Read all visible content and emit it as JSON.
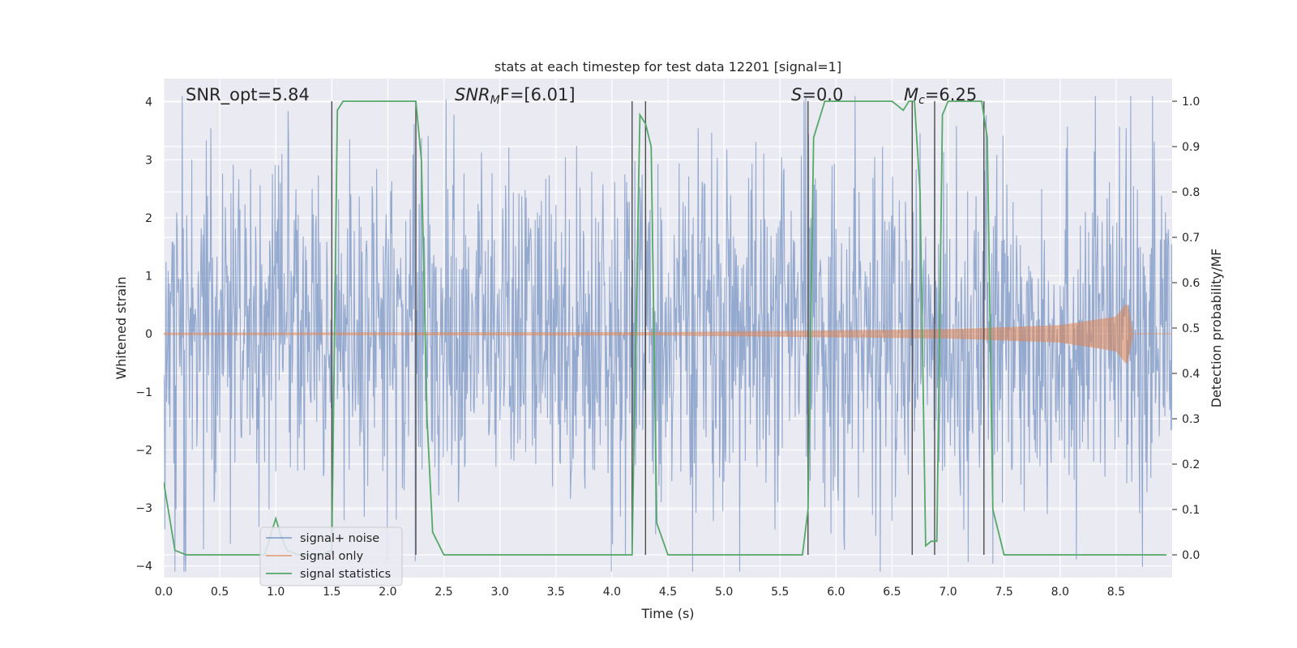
{
  "chart_data": {
    "type": "line",
    "title": "stats at each timestep for test data 12201 [signal=1]",
    "xlabel": "Time (s)",
    "ylabel": "Whitened strain",
    "y2label": "Detection probability/MF",
    "xlim": [
      0.0,
      9.0
    ],
    "ylim": [
      -4.2,
      4.4
    ],
    "y2lim": [
      -0.05,
      1.05
    ],
    "grid": true,
    "legend_position": "lower-left",
    "x_ticks": [
      "0.0",
      "0.5",
      "1.0",
      "1.5",
      "2.0",
      "2.5",
      "3.0",
      "3.5",
      "4.0",
      "4.5",
      "5.0",
      "5.5",
      "6.0",
      "6.5",
      "7.0",
      "7.5",
      "8.0",
      "8.5"
    ],
    "y_ticks": [
      "4",
      "3",
      "2",
      "1",
      "0",
      "−1",
      "−2",
      "−3",
      "−4"
    ],
    "y2_ticks": [
      "1.0",
      "0.9",
      "0.8",
      "0.7",
      "0.6",
      "0.5",
      "0.4",
      "0.3",
      "0.2",
      "0.1",
      "0.0"
    ],
    "annotations": [
      {
        "text": "SNR_opt=5.84"
      },
      {
        "text": "SNR",
        "sub": "M",
        "tail": "F=[6.01]"
      },
      {
        "text": "S",
        "tail": "=0.0"
      },
      {
        "text": "M",
        "sub": "c",
        "tail": "=6.25"
      }
    ],
    "series": [
      {
        "name": "signal+ noise",
        "color": "#4c72b0",
        "axis": "left",
        "noise_amplitude": 1.6
      },
      {
        "name": "signal only",
        "color": "#dd8452",
        "axis": "left",
        "envelope": {
          "x": [
            0.0,
            4.5,
            7.0,
            8.0,
            8.5,
            8.6,
            8.65
          ],
          "y": [
            0.02,
            0.03,
            0.08,
            0.15,
            0.3,
            0.55,
            0.05
          ]
        }
      },
      {
        "name": "signal statistics",
        "color": "#55a868",
        "axis": "right",
        "x": [
          0.0,
          0.1,
          0.2,
          0.4,
          0.6,
          0.8,
          0.9,
          1.0,
          1.05,
          1.1,
          1.2,
          1.3,
          1.4,
          1.5,
          1.55,
          1.6,
          1.8,
          2.0,
          2.2,
          2.25,
          2.3,
          2.35,
          2.4,
          2.5,
          2.7,
          3.0,
          3.5,
          4.0,
          4.18,
          4.2,
          4.25,
          4.3,
          4.35,
          4.4,
          4.5,
          5.0,
          5.5,
          5.7,
          5.75,
          5.8,
          5.9,
          6.0,
          6.5,
          6.55,
          6.6,
          6.65,
          6.7,
          6.75,
          6.8,
          6.85,
          6.9,
          6.95,
          7.0,
          7.05,
          7.1,
          7.2,
          7.3,
          7.35,
          7.4,
          7.5,
          8.0,
          8.5,
          8.95
        ],
        "y": [
          0.16,
          0.01,
          0.0,
          0.0,
          0.0,
          0.0,
          0.0,
          0.08,
          0.04,
          0.01,
          0.0,
          0.0,
          0.0,
          0.01,
          0.98,
          1.0,
          1.0,
          1.0,
          1.0,
          1.0,
          0.87,
          0.3,
          0.05,
          0.0,
          0.0,
          0.0,
          0.0,
          0.0,
          0.0,
          0.3,
          0.97,
          0.95,
          0.9,
          0.07,
          0.0,
          0.0,
          0.0,
          0.0,
          0.1,
          0.92,
          1.0,
          1.0,
          1.0,
          0.99,
          0.98,
          1.0,
          1.0,
          0.8,
          0.02,
          0.03,
          0.03,
          0.97,
          1.0,
          1.0,
          1.0,
          1.0,
          1.0,
          0.92,
          0.1,
          0.0,
          0.0,
          0.0,
          0.0
        ]
      }
    ],
    "vertical_lines_x": [
      1.5,
      2.25,
      4.18,
      4.3,
      5.75,
      6.68,
      6.88,
      7.32
    ]
  }
}
